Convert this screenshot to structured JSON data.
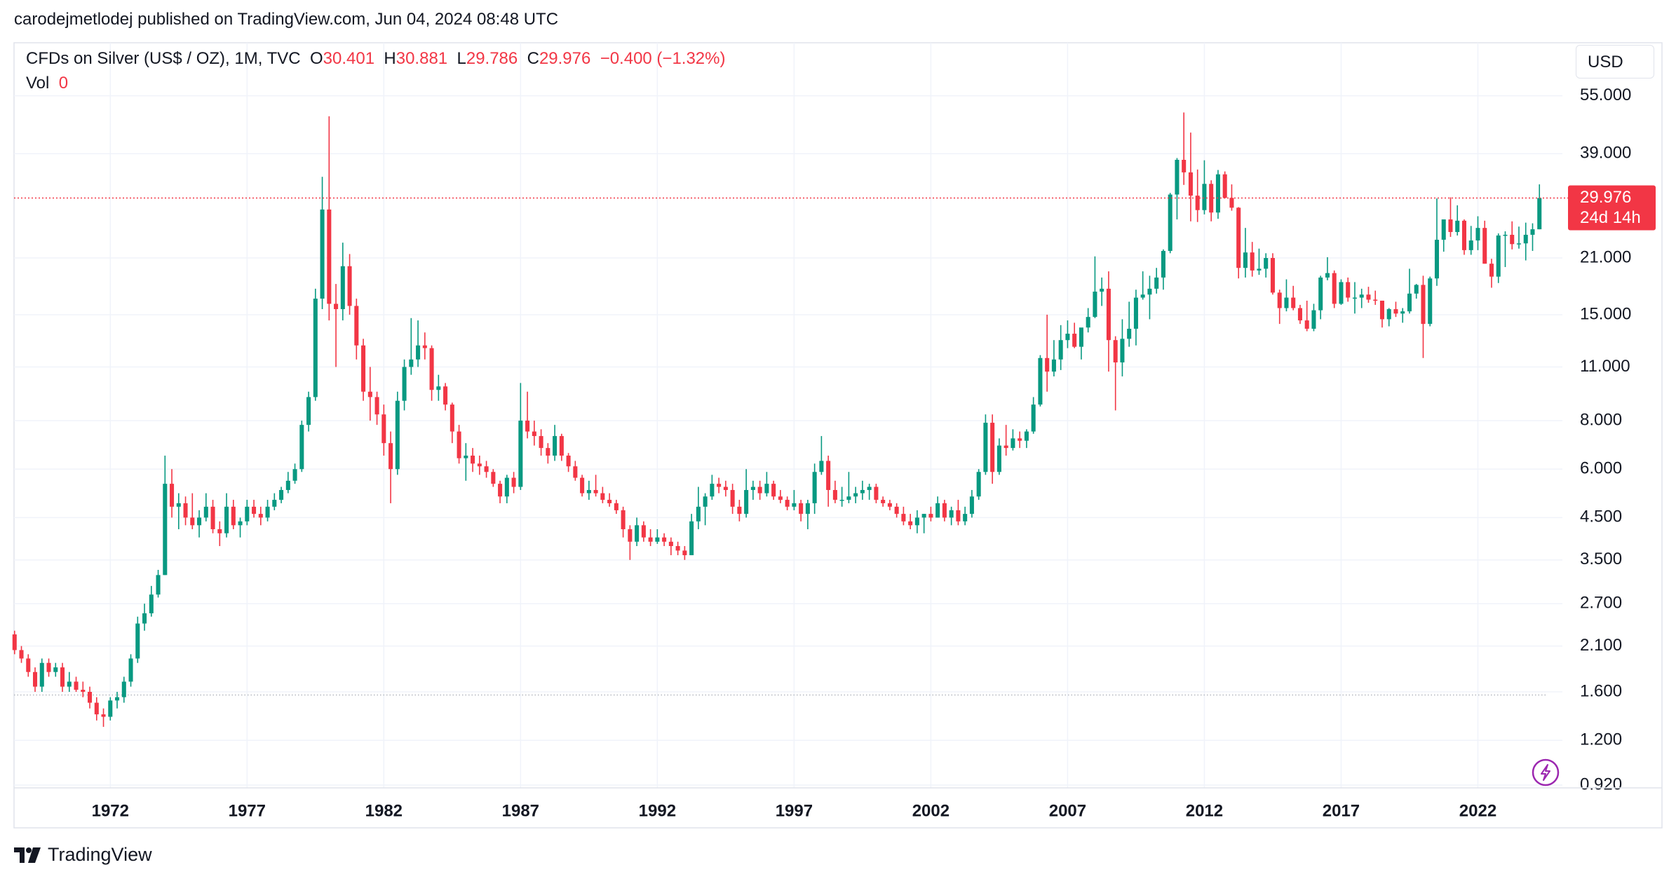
{
  "header": {
    "published": "carodejmetlodej published on TradingView.com, Jun 04, 2024 08:48 UTC"
  },
  "legend": {
    "symbol": "CFDs on Silver (US$ / OZ), 1M, TVC",
    "open_label": "O",
    "open": "30.401",
    "high_label": "H",
    "high": "30.881",
    "low_label": "L",
    "low": "29.786",
    "close_label": "C",
    "close": "29.976",
    "change": "−0.400 (−1.32%)",
    "volume_label": "Vol",
    "volume": "0"
  },
  "currency_button": "USD",
  "footer": {
    "brand": "TradingView"
  },
  "chart_data": {
    "type": "candlestick",
    "log_scale": true,
    "grid": true,
    "up_color": "#089981",
    "down_color": "#f23645",
    "x": [
      1968.5,
      1968.75,
      1969,
      1969.25,
      1969.5,
      1969.75,
      1970,
      1970.25,
      1970.5,
      1970.75,
      1971,
      1971.25,
      1971.5,
      1971.75,
      1972,
      1972.25,
      1972.5,
      1972.75,
      1973,
      1973.25,
      1973.5,
      1973.75,
      1974,
      1974.25,
      1974.5,
      1974.75,
      1975,
      1975.25,
      1975.5,
      1975.75,
      1976,
      1976.25,
      1976.5,
      1976.75,
      1977,
      1977.25,
      1977.5,
      1977.75,
      1978,
      1978.25,
      1978.5,
      1978.75,
      1979,
      1979.25,
      1979.5,
      1979.75,
      1980,
      1980.25,
      1980.5,
      1980.75,
      1981,
      1981.25,
      1981.5,
      1981.75,
      1982,
      1982.25,
      1982.5,
      1982.75,
      1983,
      1983.25,
      1983.5,
      1983.75,
      1984,
      1984.25,
      1984.5,
      1984.75,
      1985,
      1985.25,
      1985.5,
      1985.75,
      1986,
      1986.25,
      1986.5,
      1986.75,
      1987,
      1987.25,
      1987.5,
      1987.75,
      1988,
      1988.25,
      1988.5,
      1988.75,
      1989,
      1989.25,
      1989.5,
      1989.75,
      1990,
      1990.25,
      1990.5,
      1990.75,
      1991,
      1991.25,
      1991.5,
      1991.75,
      1992,
      1992.25,
      1992.5,
      1992.75,
      1993,
      1993.25,
      1993.5,
      1993.75,
      1994,
      1994.25,
      1994.5,
      1994.75,
      1995,
      1995.25,
      1995.5,
      1995.75,
      1996,
      1996.25,
      1996.5,
      1996.75,
      1997,
      1997.25,
      1997.5,
      1997.75,
      1998,
      1998.25,
      1998.5,
      1998.75,
      1999,
      1999.25,
      1999.5,
      1999.75,
      2000,
      2000.25,
      2000.5,
      2000.75,
      2001,
      2001.25,
      2001.5,
      2001.75,
      2002,
      2002.25,
      2002.5,
      2002.75,
      2003,
      2003.25,
      2003.5,
      2003.75,
      2004,
      2004.25,
      2004.5,
      2004.75,
      2005,
      2005.25,
      2005.5,
      2005.75,
      2006,
      2006.25,
      2006.5,
      2006.75,
      2007,
      2007.25,
      2007.5,
      2007.75,
      2008,
      2008.25,
      2008.5,
      2008.75,
      2009,
      2009.25,
      2009.5,
      2009.75,
      2010,
      2010.25,
      2010.5,
      2010.75,
      2011,
      2011.25,
      2011.5,
      2011.75,
      2012,
      2012.25,
      2012.5,
      2012.75,
      2013,
      2013.25,
      2013.5,
      2013.75,
      2014,
      2014.25,
      2014.5,
      2014.75,
      2015,
      2015.25,
      2015.5,
      2015.75,
      2016,
      2016.25,
      2016.5,
      2016.75,
      2017,
      2017.25,
      2017.5,
      2017.75,
      2018,
      2018.25,
      2018.5,
      2018.75,
      2019,
      2019.25,
      2019.5,
      2019.75,
      2020,
      2020.25,
      2020.5,
      2020.75,
      2021,
      2021.25,
      2021.5,
      2021.75,
      2022,
      2022.25,
      2022.5,
      2022.75,
      2023,
      2023.25,
      2023.5,
      2023.75,
      2024,
      2024.25
    ],
    "open": [
      2.25,
      2.05,
      1.95,
      1.8,
      1.65,
      1.9,
      1.8,
      1.85,
      1.65,
      1.7,
      1.62,
      1.6,
      1.5,
      1.4,
      1.38,
      1.52,
      1.55,
      1.7,
      1.95,
      2.4,
      2.55,
      2.85,
      3.2,
      5.5,
      4.8,
      4.9,
      4.5,
      4.3,
      4.5,
      4.8,
      4.2,
      4.1,
      4.8,
      4.3,
      4.4,
      4.8,
      4.6,
      4.5,
      4.8,
      5.0,
      5.3,
      5.6,
      6.0,
      7.8,
      9.2,
      16.5,
      28.0,
      16.0,
      15.5,
      20.0,
      15.8,
      12.5,
      9.5,
      9.2,
      8.3,
      7.0,
      6.0,
      9.0,
      11.0,
      11.5,
      12.5,
      12.3,
      9.6,
      9.8,
      8.8,
      7.5,
      6.4,
      6.5,
      6.2,
      6.1,
      5.9,
      5.5,
      5.1,
      5.7,
      5.4,
      8.0,
      7.5,
      7.3,
      6.8,
      6.5,
      7.3,
      6.5,
      6.1,
      5.7,
      5.2,
      5.3,
      5.2,
      5.0,
      4.9,
      4.7,
      4.2,
      3.9,
      4.3,
      4.0,
      3.9,
      4.0,
      3.9,
      3.8,
      3.7,
      3.6,
      4.4,
      4.8,
      5.1,
      5.5,
      5.4,
      5.3,
      4.8,
      4.6,
      5.3,
      5.4,
      5.2,
      5.5,
      5.1,
      5.0,
      4.8,
      4.9,
      4.6,
      4.9,
      5.9,
      6.3,
      5.3,
      5.0,
      5.0,
      5.1,
      5.2,
      5.3,
      5.4,
      5.0,
      4.9,
      4.8,
      4.6,
      4.4,
      4.3,
      4.5,
      4.6,
      4.5,
      4.9,
      4.5,
      4.7,
      4.4,
      4.6,
      5.1,
      5.9,
      7.9,
      5.9,
      6.9,
      6.8,
      7.2,
      7.1,
      7.5,
      8.8,
      11.6,
      10.7,
      11.5,
      12.9,
      13.4,
      12.4,
      13.9,
      14.8,
      17.2,
      17.5,
      12.9,
      11.3,
      13.0,
      13.8,
      16.6,
      16.9,
      17.5,
      18.7,
      21.9,
      30.6,
      37.6,
      34.9,
      30.4,
      27.9,
      32.6,
      27.5,
      34.5,
      30.0,
      28.3,
      19.8,
      21.7,
      19.5,
      19.7,
      21.0,
      17.1,
      15.6,
      16.6,
      15.6,
      14.5,
      13.8,
      15.4,
      18.7,
      19.2,
      16.0,
      18.2,
      16.6,
      16.6,
      16.9,
      16.4,
      16.3,
      14.6,
      15.5,
      15.1,
      15.3,
      17.0,
      17.9,
      14.2,
      18.6,
      23.4,
      26.4,
      24.5,
      26.2,
      22.0,
      23.3,
      25.1,
      20.3,
      18.8,
      24.0,
      24.1,
      22.8,
      22.9,
      24.1,
      24.9
    ],
    "high": [
      2.3,
      2.1,
      2.0,
      1.85,
      1.95,
      1.95,
      1.9,
      1.9,
      1.8,
      1.75,
      1.7,
      1.65,
      1.55,
      1.45,
      1.55,
      1.6,
      1.75,
      2.0,
      2.5,
      2.7,
      3.0,
      3.3,
      6.5,
      6.0,
      5.2,
      5.1,
      5.2,
      4.7,
      5.2,
      5.0,
      4.4,
      5.2,
      5.0,
      4.5,
      5.0,
      5.0,
      4.8,
      5.0,
      5.2,
      5.4,
      5.9,
      6.2,
      8.0,
      9.5,
      17.5,
      34.0,
      48.7,
      18.0,
      23.0,
      21.5,
      16.5,
      13.0,
      11.0,
      9.5,
      8.8,
      7.5,
      9.5,
      11.5,
      14.7,
      14.5,
      13.5,
      12.5,
      10.5,
      10.0,
      8.9,
      7.8,
      7.0,
      6.8,
      6.5,
      6.3,
      6.0,
      5.6,
      5.8,
      5.9,
      10.0,
      9.5,
      8.0,
      7.6,
      7.0,
      7.8,
      7.4,
      6.6,
      6.3,
      5.8,
      5.6,
      5.8,
      5.4,
      5.2,
      5.0,
      4.8,
      4.3,
      4.5,
      4.4,
      4.2,
      4.2,
      4.1,
      4.0,
      3.9,
      3.8,
      4.6,
      5.4,
      5.2,
      5.8,
      5.7,
      5.6,
      5.5,
      5.0,
      6.0,
      5.6,
      5.6,
      5.9,
      5.6,
      5.3,
      5.1,
      5.3,
      5.0,
      5.0,
      6.2,
      7.3,
      6.5,
      5.6,
      5.4,
      5.9,
      5.4,
      5.6,
      5.5,
      5.5,
      5.1,
      5.0,
      4.9,
      4.8,
      4.6,
      4.7,
      4.6,
      4.8,
      5.1,
      5.0,
      4.8,
      5.0,
      4.8,
      5.3,
      6.0,
      8.3,
      8.3,
      7.2,
      7.8,
      7.6,
      7.5,
      7.6,
      9.2,
      11.8,
      15.0,
      12.9,
      14.1,
      14.5,
      14.3,
      13.8,
      15.6,
      21.2,
      18.7,
      19.4,
      13.2,
      14.6,
      16.2,
      17.4,
      19.4,
      18.9,
      19.8,
      22.1,
      30.9,
      38.0,
      49.8,
      44.2,
      35.5,
      37.5,
      33.3,
      35.4,
      35.1,
      32.5,
      28.4,
      25.1,
      23.1,
      22.2,
      21.6,
      21.6,
      17.4,
      18.5,
      17.8,
      15.9,
      16.3,
      16.0,
      18.9,
      21.1,
      19.5,
      18.5,
      18.7,
      18.2,
      17.5,
      17.7,
      17.3,
      16.3,
      15.6,
      16.2,
      15.6,
      19.7,
      18.0,
      18.9,
      18.8,
      29.9,
      26.4,
      30.1,
      28.7,
      26.4,
      25.4,
      26.9,
      26.2,
      20.9,
      24.3,
      24.6,
      26.1,
      25.3,
      25.9,
      25.8,
      32.5
    ],
    "low": [
      2.0,
      1.9,
      1.75,
      1.6,
      1.6,
      1.75,
      1.75,
      1.6,
      1.6,
      1.6,
      1.55,
      1.45,
      1.35,
      1.3,
      1.35,
      1.45,
      1.5,
      1.65,
      1.9,
      2.3,
      2.5,
      2.8,
      3.2,
      4.5,
      4.2,
      4.3,
      4.2,
      4.0,
      4.4,
      4.1,
      3.8,
      4.0,
      4.2,
      4.0,
      4.3,
      4.5,
      4.3,
      4.4,
      4.7,
      4.9,
      5.2,
      5.5,
      5.9,
      7.5,
      9.0,
      15.5,
      14.5,
      11.0,
      14.5,
      15.0,
      11.5,
      9.0,
      8.0,
      7.8,
      6.5,
      4.9,
      5.8,
      8.5,
      10.5,
      11.0,
      11.5,
      9.0,
      9.0,
      8.5,
      7.0,
      6.2,
      5.6,
      5.9,
      5.8,
      5.7,
      5.4,
      4.9,
      4.9,
      5.2,
      5.3,
      7.2,
      6.9,
      6.5,
      6.2,
      6.3,
      6.3,
      5.9,
      5.6,
      5.1,
      5.0,
      5.1,
      4.9,
      4.8,
      4.6,
      4.0,
      3.5,
      3.8,
      3.9,
      3.8,
      3.85,
      3.8,
      3.6,
      3.6,
      3.5,
      3.6,
      4.2,
      4.3,
      5.0,
      5.2,
      5.1,
      4.6,
      4.4,
      4.5,
      5.0,
      5.0,
      5.1,
      5.0,
      4.9,
      4.7,
      4.7,
      4.4,
      4.2,
      4.6,
      5.8,
      4.8,
      4.9,
      4.8,
      4.9,
      4.9,
      5.0,
      5.0,
      4.9,
      4.8,
      4.7,
      4.5,
      4.3,
      4.2,
      4.1,
      4.1,
      4.4,
      4.5,
      4.4,
      4.3,
      4.3,
      4.3,
      4.5,
      5.0,
      5.8,
      5.5,
      5.8,
      6.5,
      6.7,
      6.8,
      6.8,
      7.4,
      8.7,
      9.5,
      10.4,
      10.8,
      12.3,
      12.3,
      11.5,
      13.5,
      14.7,
      15.8,
      10.7,
      8.5,
      10.4,
      12.4,
      12.5,
      16.4,
      14.6,
      17.0,
      17.4,
      21.6,
      26.4,
      32.4,
      26.1,
      26.0,
      27.2,
      26.1,
      26.5,
      29.9,
      27.8,
      18.6,
      18.7,
      18.8,
      19.0,
      18.7,
      16.9,
      14.2,
      15.3,
      15.4,
      14.2,
      13.6,
      13.6,
      14.6,
      18.4,
      15.6,
      15.9,
      16.2,
      15.1,
      15.6,
      16.1,
      15.9,
      13.9,
      14.0,
      14.8,
      14.3,
      15.1,
      16.5,
      11.6,
      14.0,
      17.8,
      21.8,
      23.8,
      24.0,
      21.4,
      21.4,
      22.0,
      20.3,
      17.6,
      18.1,
      19.9,
      22.1,
      22.2,
      20.7,
      21.9,
      24.9
    ],
    "close": [
      2.05,
      1.95,
      1.8,
      1.65,
      1.9,
      1.8,
      1.85,
      1.65,
      1.7,
      1.62,
      1.6,
      1.5,
      1.4,
      1.38,
      1.52,
      1.55,
      1.7,
      1.95,
      2.4,
      2.55,
      2.85,
      3.2,
      5.5,
      4.8,
      4.9,
      4.5,
      4.3,
      4.5,
      4.8,
      4.2,
      4.1,
      4.8,
      4.3,
      4.4,
      4.8,
      4.6,
      4.5,
      4.8,
      5.0,
      5.3,
      5.6,
      6.0,
      7.8,
      9.2,
      16.5,
      28.0,
      16.0,
      15.5,
      20.0,
      15.8,
      12.5,
      9.5,
      9.2,
      8.3,
      7.0,
      6.0,
      9.0,
      11.0,
      11.5,
      12.5,
      12.3,
      9.6,
      9.8,
      8.8,
      7.5,
      6.4,
      6.5,
      6.2,
      6.1,
      5.9,
      5.5,
      5.1,
      5.7,
      5.4,
      8.0,
      7.5,
      7.3,
      6.8,
      6.5,
      7.3,
      6.5,
      6.1,
      5.7,
      5.2,
      5.3,
      5.2,
      5.0,
      4.9,
      4.7,
      4.2,
      3.9,
      4.3,
      4.0,
      3.9,
      4.0,
      3.9,
      3.8,
      3.7,
      3.6,
      4.4,
      4.8,
      5.1,
      5.5,
      5.4,
      5.3,
      4.8,
      4.6,
      5.3,
      5.4,
      5.2,
      5.5,
      5.1,
      5.0,
      4.8,
      4.9,
      4.6,
      4.9,
      5.9,
      6.3,
      5.3,
      5.0,
      5.0,
      5.1,
      5.2,
      5.3,
      5.4,
      5.0,
      4.9,
      4.8,
      4.6,
      4.4,
      4.3,
      4.5,
      4.6,
      4.5,
      4.9,
      4.5,
      4.7,
      4.4,
      4.6,
      5.1,
      5.9,
      7.9,
      5.9,
      6.9,
      6.8,
      7.2,
      7.1,
      7.5,
      8.8,
      11.6,
      10.7,
      11.5,
      12.9,
      13.4,
      12.4,
      13.9,
      14.8,
      17.2,
      17.5,
      12.9,
      11.3,
      13.0,
      13.8,
      16.6,
      16.9,
      17.5,
      18.7,
      21.9,
      30.6,
      37.6,
      34.9,
      30.4,
      27.9,
      32.6,
      27.5,
      34.5,
      30.0,
      28.3,
      19.8,
      21.7,
      19.5,
      19.7,
      21.0,
      17.1,
      15.6,
      16.6,
      15.6,
      14.5,
      13.8,
      15.4,
      18.7,
      19.2,
      16.0,
      18.2,
      16.6,
      16.6,
      16.9,
      16.4,
      16.3,
      14.6,
      15.5,
      15.1,
      15.3,
      17.0,
      17.9,
      14.2,
      18.6,
      23.4,
      26.4,
      24.5,
      26.2,
      22.0,
      23.3,
      25.1,
      20.3,
      18.8,
      24.0,
      24.1,
      22.8,
      22.9,
      24.1,
      24.9,
      29.976
    ],
    "xlim": [
      1968.48,
      2025.09
    ],
    "xticks": [
      1972,
      1977,
      1982,
      1987,
      1992,
      1997,
      2002,
      2007,
      2012,
      2017,
      2022
    ],
    "ylim": [
      0.905,
      75
    ],
    "yticks": [
      {
        "value": 55,
        "label": "55.000"
      },
      {
        "value": 39,
        "label": "39.000"
      },
      {
        "value": 21,
        "label": "21.000"
      },
      {
        "value": 15,
        "label": "15.000"
      },
      {
        "value": 11,
        "label": "11.000"
      },
      {
        "value": 8,
        "label": "8.000"
      },
      {
        "value": 6,
        "label": "6.000"
      },
      {
        "value": 4.5,
        "label": "4.500"
      },
      {
        "value": 3.5,
        "label": "3.500"
      },
      {
        "value": 2.7,
        "label": "2.700"
      },
      {
        "value": 2.1,
        "label": "2.100"
      },
      {
        "value": 1.6,
        "label": "1.600"
      },
      {
        "value": 1.2,
        "label": "1.200"
      },
      {
        "value": 0.92,
        "label": "0.920"
      }
    ],
    "last_price": {
      "value": 29.976,
      "label": "29.976"
    },
    "countdown": "24d 14h",
    "reference_line": 1.57
  }
}
